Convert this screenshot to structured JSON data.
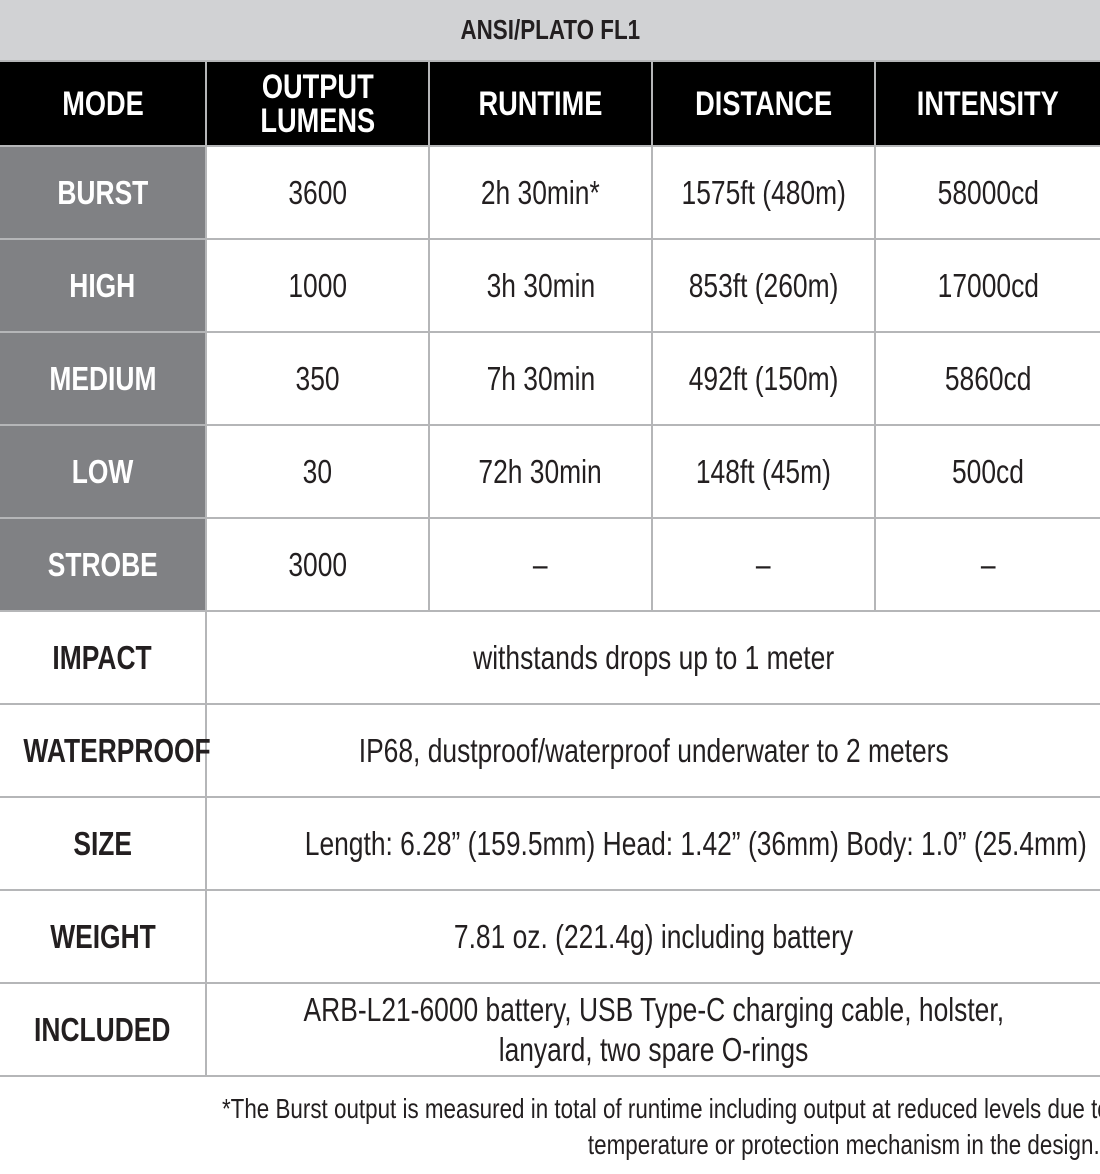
{
  "title": "ANSI/PLATO FL1",
  "headers": [
    "MODE",
    "OUTPUT LUMENS",
    "RUNTIME",
    "DISTANCE",
    "INTENSITY"
  ],
  "header_lines": {
    "output": [
      "OUTPUT",
      "LUMENS"
    ]
  },
  "modes": [
    {
      "mode": "BURST",
      "lumens": "3600",
      "runtime": "2h 30min*",
      "distance": "1575ft (480m)",
      "intensity": "58000cd"
    },
    {
      "mode": "HIGH",
      "lumens": "1000",
      "runtime": "3h 30min",
      "distance": "853ft (260m)",
      "intensity": "17000cd"
    },
    {
      "mode": "MEDIUM",
      "lumens": "350",
      "runtime": "7h 30min",
      "distance": "492ft (150m)",
      "intensity": "5860cd"
    },
    {
      "mode": "LOW",
      "lumens": "30",
      "runtime": "72h 30min",
      "distance": "148ft (45m)",
      "intensity": "500cd"
    },
    {
      "mode": "STROBE",
      "lumens": "3000",
      "runtime": "–",
      "distance": "–",
      "intensity": "–"
    }
  ],
  "specs": [
    {
      "label": "IMPACT",
      "value": "withstands drops up to 1 meter"
    },
    {
      "label": "WATERPROOF",
      "value": "IP68, dustproof/waterproof underwater to 2 meters"
    },
    {
      "label": "SIZE",
      "value": "Length: 6.28” (159.5mm) Head: 1.42” (36mm) Body: 1.0” (25.4mm)"
    },
    {
      "label": "WEIGHT",
      "value": "7.81 oz. (221.4g) including battery"
    },
    {
      "label": "INCLUDED",
      "value_lines": [
        "ARB-L21-6000 battery, USB Type-C charging cable, holster,",
        "lanyard, two spare O-rings"
      ]
    }
  ],
  "footnote_lines": [
    "*The Burst output is measured in total of runtime including output at reduced levels due to",
    "temperature or protection mechanism in the design."
  ],
  "colors": {
    "title_bg": "#d1d2d4",
    "header_bg": "#000000",
    "mode_bg": "#808184",
    "border": "#b5b6b8"
  }
}
